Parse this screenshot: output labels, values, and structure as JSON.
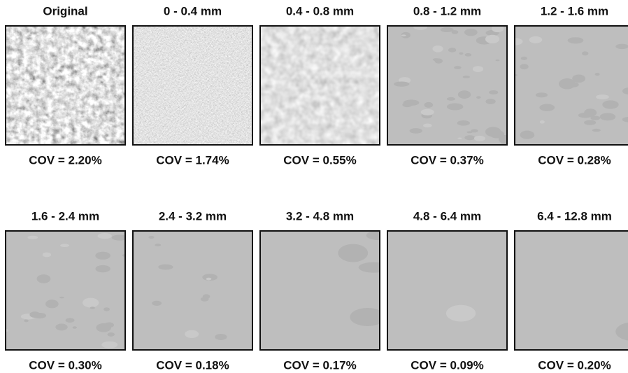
{
  "panels": [
    {
      "title": "Original",
      "cov": "COV = 2.20%"
    },
    {
      "title": "0 - 0.4 mm",
      "cov": "COV = 1.74%"
    },
    {
      "title": "0.4 - 0.8 mm",
      "cov": "COV = 0.55%"
    },
    {
      "title": "0.8 - 1.2 mm",
      "cov": "COV = 0.37%"
    },
    {
      "title": "1.2 - 1.6 mm",
      "cov": "COV = 0.28%"
    },
    {
      "title": "1.6 - 2.4 mm",
      "cov": "COV = 0.30%"
    },
    {
      "title": "2.4 - 3.2 mm",
      "cov": "COV = 0.18%"
    },
    {
      "title": "3.2 - 4.8 mm",
      "cov": "COV = 0.17%"
    },
    {
      "title": "4.8 - 6.4 mm",
      "cov": "COV = 0.09%"
    },
    {
      "title": "6.4 - 12.8 mm",
      "cov": "COV = 0.20%"
    }
  ]
}
